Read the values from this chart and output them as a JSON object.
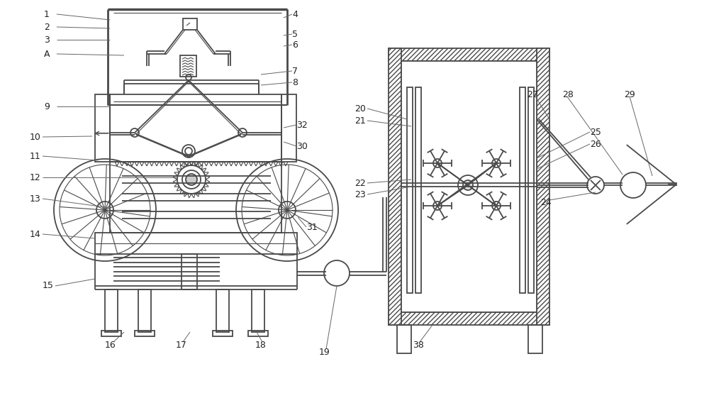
{
  "bg_color": "#ffffff",
  "line_color": "#4a4a4a",
  "lw": 1.3,
  "tlw": 0.8,
  "label_fs": 9,
  "label_color": "#222222",
  "leader_color": "#666666"
}
